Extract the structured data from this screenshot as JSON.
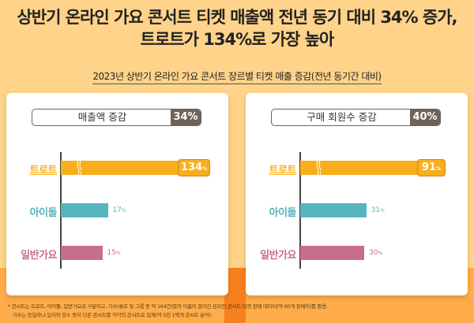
{
  "title": [
    "상반기 온라인 가요 콘서트 티켓 매출액 전년 동기 대비 34% 증가,",
    "트로트가 134%로 가장 높아"
  ],
  "subtitle": "2023년 상반기 온라인 가요 콘서트 장르별 티켓 매출 증감(전년 동기간 대비)",
  "chart_data": [
    {
      "type": "bar",
      "orientation": "horizontal",
      "title": "매출액 증감",
      "total_label": "34%",
      "categories": [
        "트로트",
        "아이돌",
        "일반가요"
      ],
      "values": [
        134,
        17,
        15
      ],
      "unit": "%",
      "axis_break": true,
      "colors": [
        "#F9AE1C",
        "#55B4BE",
        "#C76E8C"
      ]
    },
    {
      "type": "bar",
      "orientation": "horizontal",
      "title": "구매 회원수 증감",
      "total_label": "40%",
      "categories": [
        "트로트",
        "아이돌",
        "일반가요"
      ],
      "values": [
        91,
        31,
        30
      ],
      "unit": "%",
      "axis_break": true,
      "colors": [
        "#F9AE1C",
        "#55B4BE",
        "#C76E8C"
      ]
    }
  ],
  "footnote": [
    "* 콘서트는 트로트, 아이돌, 일반가요로 구분하고, 가수(솔로 및 그룹 등 약 164건)들의 이름이 들어간 온라인 콘서트 티켓 판매 데이터(약 60개 판매처)를 활용.",
    "가수는 동일하나 일자와 장소 등이 다른 콘서트를 각각의 콘서트로 집계(약 5천 1백개 콘서트 분석)"
  ]
}
